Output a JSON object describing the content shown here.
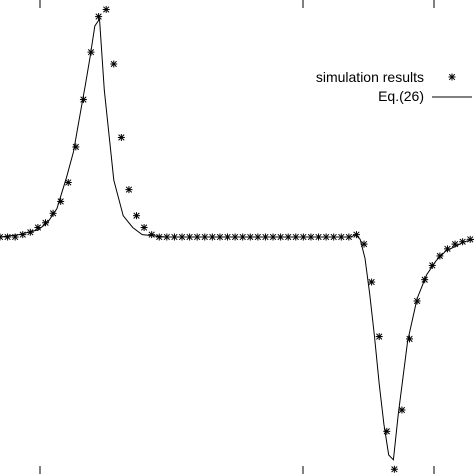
{
  "chart_data": {
    "type": "line",
    "title": "",
    "xlabel": "",
    "ylabel": "",
    "grid": false,
    "legend_position": "top-right",
    "xlim": [
      0,
      100
    ],
    "ylim": [
      -1.0,
      1.0
    ],
    "series": [
      {
        "name": "simulation results",
        "kind": "scatter",
        "marker": "asterisk",
        "x": [
          0,
          1.6,
          3.2,
          4.8,
          6.4,
          8,
          9.6,
          11.2,
          12.8,
          14.4,
          16,
          17.6,
          19.2,
          20.8,
          22.4,
          24,
          25.6,
          27.2,
          28.8,
          30.4,
          32,
          33.6,
          35.2,
          36.8,
          38.4,
          40,
          41.6,
          43.2,
          44.8,
          46.4,
          48,
          49.6,
          51.2,
          52.8,
          54.4,
          56,
          57.6,
          59.2,
          60.8,
          62.4,
          64,
          65.6,
          67.2,
          68.8,
          70.4,
          72,
          73.6,
          75.2,
          76.8,
          78.4,
          80,
          81.6,
          83.2,
          84.8,
          86.4,
          88,
          89.6,
          91.2,
          92.8,
          94.4,
          96,
          97.6,
          99.2
        ],
        "y": [
          0,
          0,
          0,
          0.01,
          0.02,
          0.04,
          0.06,
          0.1,
          0.15,
          0.23,
          0.38,
          0.58,
          0.78,
          0.93,
          0.96,
          0.73,
          0.42,
          0.2,
          0.09,
          0.04,
          0.01,
          0,
          0,
          0,
          0,
          0,
          0,
          0,
          0,
          0,
          0,
          0,
          0,
          0,
          0,
          0,
          0,
          0,
          0,
          0,
          0,
          0,
          0,
          0,
          0,
          0,
          0,
          0.01,
          -0.03,
          -0.19,
          -0.42,
          -0.82,
          -0.98,
          -0.73,
          -0.43,
          -0.27,
          -0.18,
          -0.12,
          -0.08,
          -0.05,
          -0.03,
          -0.02,
          -0.01
        ]
      },
      {
        "name": "Eq.(26)",
        "kind": "line",
        "x": [
          0,
          4,
          8,
          10,
          12,
          14,
          15.5,
          17,
          18,
          19,
          20,
          21,
          22,
          24,
          26,
          28,
          30,
          35,
          40,
          50,
          60,
          70,
          72,
          74,
          75,
          76,
          77,
          78,
          79,
          80,
          81,
          82,
          83,
          84,
          86,
          88,
          90,
          92,
          94,
          96,
          98,
          100
        ],
        "y": [
          0,
          0.01,
          0.03,
          0.06,
          0.12,
          0.25,
          0.36,
          0.53,
          0.64,
          0.76,
          0.89,
          0.92,
          0.62,
          0.24,
          0.09,
          0.04,
          0.01,
          0,
          0,
          0,
          0,
          0,
          0,
          0,
          0.01,
          -0.01,
          -0.09,
          -0.24,
          -0.42,
          -0.62,
          -0.79,
          -0.92,
          -0.94,
          -0.75,
          -0.44,
          -0.26,
          -0.16,
          -0.1,
          -0.06,
          -0.04,
          -0.02,
          -0.01
        ]
      }
    ]
  }
}
